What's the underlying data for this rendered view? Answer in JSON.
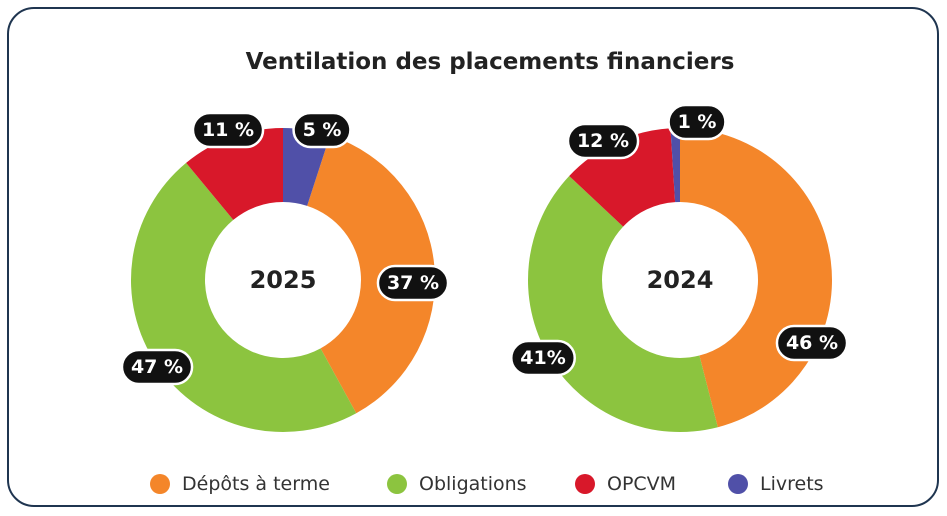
{
  "title": "Ventilation des placements financiers",
  "categories": [
    "Dépôts à terme",
    "Obligations",
    "OPCVM",
    "Livrets"
  ],
  "colors": [
    "#f4862a",
    "#8cc43f",
    "#d8182a",
    "#5050a8"
  ],
  "chart_data": [
    {
      "type": "pie",
      "label": "2025",
      "values": [
        37,
        47,
        11,
        5
      ],
      "value_labels": [
        "37 %",
        "47 %",
        "11 %",
        "5 %"
      ]
    },
    {
      "type": "pie",
      "label": "2024",
      "values": [
        46,
        41,
        12,
        1
      ],
      "value_labels": [
        "46 %",
        "41%",
        "12 %",
        "1 %"
      ]
    }
  ]
}
